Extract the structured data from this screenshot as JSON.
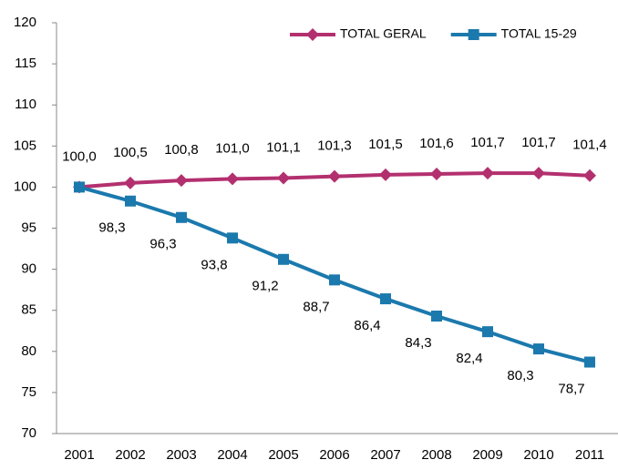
{
  "chart_data": {
    "type": "line",
    "categories": [
      "2001",
      "2002",
      "2003",
      "2004",
      "2005",
      "2006",
      "2007",
      "2008",
      "2009",
      "2010",
      "2011"
    ],
    "series": [
      {
        "name": "TOTAL GERAL",
        "color": "#b3306f",
        "marker": "diamond",
        "values": [
          100.0,
          100.5,
          100.8,
          101.0,
          101.1,
          101.3,
          101.5,
          101.6,
          101.7,
          101.7,
          101.4
        ],
        "value_labels": [
          "100,0",
          "100,5",
          "100,8",
          "101,0",
          "101,1",
          "101,3",
          "101,5",
          "101,6",
          "101,7",
          "101,7",
          "101,4"
        ]
      },
      {
        "name": "TOTAL 15-29",
        "color": "#1b79ad",
        "marker": "square",
        "values": [
          100.0,
          98.3,
          96.3,
          93.8,
          91.2,
          88.7,
          86.4,
          84.3,
          82.4,
          80.3,
          78.7
        ],
        "value_labels": [
          null,
          "98,3",
          "96,3",
          "93,8",
          "91,2",
          "88,7",
          "86,4",
          "84,3",
          "82,4",
          "80,3",
          "78,7"
        ]
      }
    ],
    "ylim": [
      70,
      120
    ],
    "yticks": [
      70,
      75,
      80,
      85,
      90,
      95,
      100,
      105,
      110,
      115,
      120
    ],
    "grid": false,
    "legend": "top-right"
  }
}
